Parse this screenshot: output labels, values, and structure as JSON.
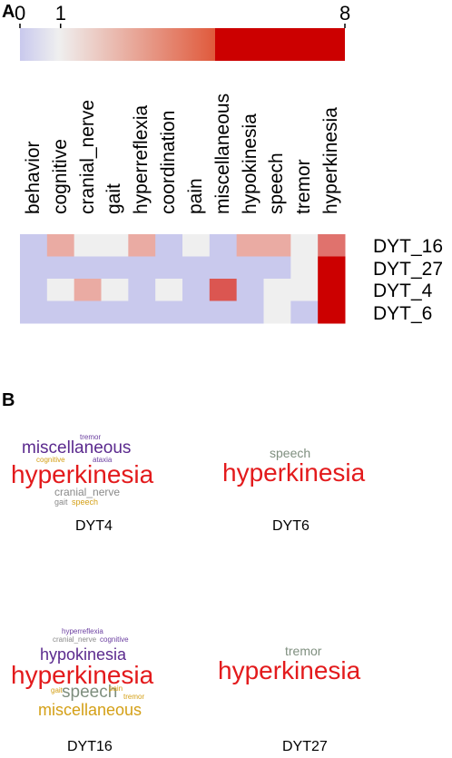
{
  "panels": {
    "a": "A",
    "b": "B"
  },
  "chart_data": {
    "type": "heatmap",
    "colorbar": {
      "ticks": [
        "0",
        "1",
        "8"
      ],
      "tick_values": [
        0,
        1,
        8
      ],
      "min": 0,
      "max": 8,
      "colors": {
        "low": "#c9c9ed",
        "mid": "#efefef",
        "high": "#cc0000"
      }
    },
    "columns": [
      "behavior",
      "cognitive",
      "cranial_nerve",
      "gait",
      "hyperreflexia",
      "coordination",
      "pain",
      "miscellaneous",
      "hypokinesia",
      "speech",
      "tremor",
      "hyperkinesia"
    ],
    "rows": [
      "DYT_16",
      "DYT_27",
      "DYT_4",
      "DYT_6"
    ],
    "values": [
      [
        0,
        2,
        1,
        1,
        2,
        0,
        1,
        0,
        2,
        2,
        1,
        4
      ],
      [
        0,
        0,
        0,
        0,
        0,
        0,
        0,
        0,
        0,
        0,
        1,
        8
      ],
      [
        0,
        1,
        2,
        1,
        0,
        1,
        0,
        5,
        0,
        1,
        1,
        8
      ],
      [
        0,
        0,
        0,
        0,
        0,
        0,
        0,
        0,
        0,
        1,
        0,
        8
      ]
    ]
  },
  "wordclouds": {
    "dyt4": {
      "caption": "DYT4",
      "words": [
        {
          "text": "tremor",
          "color": "#6b3fa0"
        },
        {
          "text": "miscellaneous",
          "color": "#5b2a8e"
        },
        {
          "text": "cognitive",
          "color": "#d4a017"
        },
        {
          "text": "ataxia",
          "color": "#6b3fa0"
        },
        {
          "text": "hyperkinesia",
          "color": "#e31a1c"
        },
        {
          "text": "cranial_nerve",
          "color": "#8a8a8a"
        },
        {
          "text": "gait",
          "color": "#8a8a8a"
        },
        {
          "text": "speech",
          "color": "#d4a017"
        }
      ]
    },
    "dyt6": {
      "caption": "DYT6",
      "words": [
        {
          "text": "speech",
          "color": "#7f8f7f"
        },
        {
          "text": "hyperkinesia",
          "color": "#e31a1c"
        }
      ]
    },
    "dyt16": {
      "caption": "DYT16",
      "words": [
        {
          "text": "hyperreflexia",
          "color": "#6b3fa0"
        },
        {
          "text": "cranial_nerve",
          "color": "#8a8a8a"
        },
        {
          "text": "cognitive",
          "color": "#6b3fa0"
        },
        {
          "text": "hypokinesia",
          "color": "#5b2a8e"
        },
        {
          "text": "hyperkinesia",
          "color": "#e31a1c"
        },
        {
          "text": "gait",
          "color": "#d4a017"
        },
        {
          "text": "speech",
          "color": "#7f8f7f"
        },
        {
          "text": "pain",
          "color": "#d4a017"
        },
        {
          "text": "tremor",
          "color": "#d4a017"
        },
        {
          "text": "miscellaneous",
          "color": "#d4a017"
        }
      ]
    },
    "dyt27": {
      "caption": "DYT27",
      "words": [
        {
          "text": "tremor",
          "color": "#7f8f7f"
        },
        {
          "text": "hyperkinesia",
          "color": "#e31a1c"
        }
      ]
    }
  }
}
